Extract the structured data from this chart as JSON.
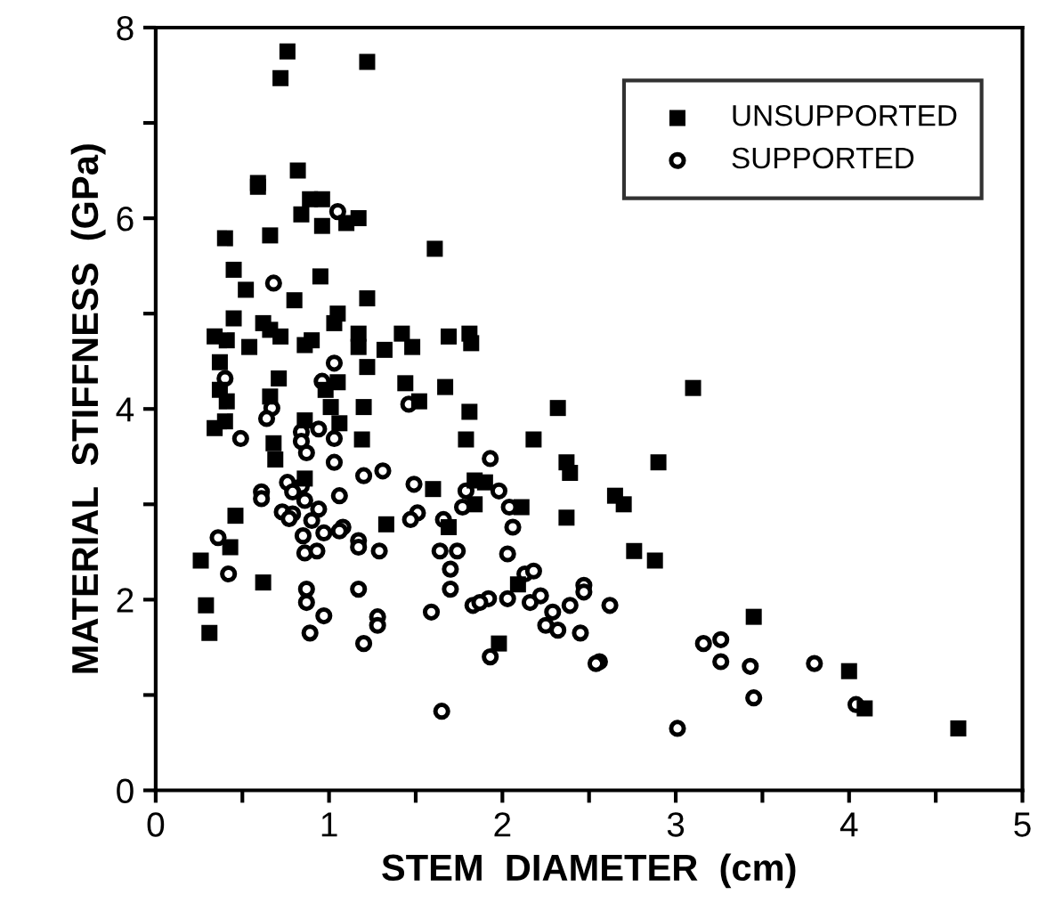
{
  "chart_data": {
    "type": "scatter",
    "xlabel": "STEM  DIAMETER  (cm)",
    "ylabel": "MATERIAL  STIFFNESS  (GPa)",
    "xlim": [
      0,
      5
    ],
    "ylim": [
      0,
      8
    ],
    "xticks": [
      0,
      {
        "value": 0.5,
        "label": null
      },
      1,
      {
        "value": 1.5,
        "label": null
      },
      2,
      {
        "value": 2.5,
        "label": null
      },
      3,
      {
        "value": 3.5,
        "label": null
      },
      4,
      {
        "value": 4.5,
        "label": null
      },
      5
    ],
    "yticks": [
      0,
      {
        "value": 1,
        "label": null
      },
      2,
      {
        "value": 3,
        "label": null
      },
      4,
      {
        "value": 5,
        "label": null
      },
      6,
      {
        "value": 7,
        "label": null
      },
      8
    ],
    "legend": "top right",
    "grid": false,
    "series": [
      {
        "name": "UNSUPPORTED",
        "color": "#000000",
        "marker": "square",
        "x": [
          0.76,
          0.72,
          1.22,
          0.82,
          0.59,
          0.59,
          0.89,
          0.96,
          0.84,
          0.96,
          1.1,
          1.17,
          0.4,
          0.66,
          1.61,
          0.45,
          0.95,
          0.52,
          0.8,
          1.22,
          0.45,
          0.62,
          1.05,
          1.03,
          0.34,
          0.41,
          0.54,
          0.72,
          0.66,
          0.9,
          0.86,
          1.17,
          1.17,
          1.32,
          1.42,
          1.48,
          1.69,
          1.81,
          1.82,
          0.37,
          1.22,
          0.71,
          1.05,
          0.98,
          0.37,
          0.41,
          0.66,
          1.44,
          1.52,
          1.67,
          1.01,
          1.2,
          1.81,
          2.32,
          3.1,
          0.34,
          0.4,
          0.86,
          1.06,
          1.19,
          0.68,
          0.69,
          1.79,
          2.18,
          2.37,
          2.39,
          2.9,
          0.86,
          1.6,
          1.84,
          1.9,
          1.84,
          2.11,
          2.65,
          2.7,
          1.33,
          2.37,
          0.46,
          1.69,
          2.76,
          2.88,
          0.26,
          0.43,
          0.62,
          2.09,
          0.29,
          0.31,
          1.98,
          3.45,
          4.0,
          4.09,
          4.63
        ],
        "values": [
          7.75,
          7.47,
          7.64,
          6.5,
          6.37,
          6.33,
          6.2,
          6.2,
          6.04,
          5.92,
          5.95,
          6.0,
          5.79,
          5.82,
          5.68,
          5.46,
          5.39,
          5.25,
          5.14,
          5.16,
          4.95,
          4.9,
          5.0,
          4.9,
          4.76,
          4.72,
          4.65,
          4.76,
          4.83,
          4.72,
          4.67,
          4.79,
          4.65,
          4.62,
          4.79,
          4.65,
          4.76,
          4.79,
          4.69,
          4.49,
          4.44,
          4.32,
          4.28,
          4.2,
          4.2,
          4.08,
          4.13,
          4.27,
          4.08,
          4.23,
          4.02,
          4.02,
          3.97,
          4.01,
          4.22,
          3.8,
          3.87,
          3.88,
          3.85,
          3.68,
          3.64,
          3.47,
          3.68,
          3.68,
          3.44,
          3.33,
          3.44,
          3.27,
          3.16,
          3.25,
          3.23,
          3.0,
          2.97,
          3.09,
          3.0,
          2.79,
          2.86,
          2.88,
          2.76,
          2.51,
          2.41,
          2.41,
          2.55,
          2.18,
          2.16,
          1.94,
          1.65,
          1.54,
          1.82,
          1.25,
          0.86,
          0.65
        ]
      },
      {
        "name": "SUPPORTED",
        "color": "#000000",
        "marker": "circle",
        "x": [
          1.05,
          0.68,
          0.4,
          1.03,
          0.96,
          1.46,
          0.67,
          0.64,
          0.84,
          0.94,
          0.84,
          1.03,
          0.49,
          0.87,
          1.03,
          1.93,
          1.2,
          1.31,
          0.61,
          0.61,
          0.76,
          0.84,
          1.06,
          1.49,
          1.79,
          1.98,
          0.79,
          0.86,
          0.73,
          0.79,
          0.77,
          0.94,
          0.9,
          1.51,
          1.47,
          1.66,
          1.77,
          2.04,
          2.06,
          1.08,
          0.97,
          1.06,
          0.36,
          0.85,
          1.17,
          1.17,
          1.29,
          0.86,
          0.93,
          1.64,
          1.74,
          1.7,
          2.03,
          0.42,
          2.13,
          2.18,
          1.17,
          0.87,
          1.7,
          2.47,
          2.47,
          2.22,
          0.87,
          1.92,
          2.03,
          1.83,
          1.87,
          2.16,
          2.62,
          2.39,
          2.29,
          1.59,
          0.97,
          1.28,
          1.28,
          2.25,
          2.32,
          0.89,
          2.45,
          1.2,
          1.93,
          2.56,
          2.54,
          3.16,
          3.26,
          3.26,
          3.43,
          3.8,
          3.45,
          4.04,
          1.65,
          3.01
        ],
        "values": [
          6.07,
          5.32,
          4.32,
          4.48,
          4.29,
          4.05,
          4.01,
          3.9,
          3.76,
          3.79,
          3.66,
          3.69,
          3.69,
          3.54,
          3.44,
          3.48,
          3.3,
          3.35,
          3.13,
          3.06,
          3.23,
          3.19,
          3.09,
          3.21,
          3.14,
          3.14,
          3.13,
          3.04,
          2.92,
          2.9,
          2.85,
          2.95,
          2.83,
          2.91,
          2.84,
          2.84,
          2.97,
          2.97,
          2.76,
          2.76,
          2.7,
          2.72,
          2.65,
          2.67,
          2.62,
          2.55,
          2.51,
          2.49,
          2.51,
          2.51,
          2.51,
          2.32,
          2.48,
          2.27,
          2.27,
          2.3,
          2.11,
          2.11,
          2.11,
          2.15,
          2.08,
          2.04,
          1.97,
          2.01,
          2.01,
          1.94,
          1.97,
          1.97,
          1.94,
          1.94,
          1.87,
          1.87,
          1.83,
          1.82,
          1.73,
          1.73,
          1.68,
          1.65,
          1.65,
          1.54,
          1.4,
          1.35,
          1.33,
          1.54,
          1.58,
          1.35,
          1.3,
          1.33,
          0.97,
          0.9,
          0.83,
          0.65
        ]
      }
    ]
  }
}
